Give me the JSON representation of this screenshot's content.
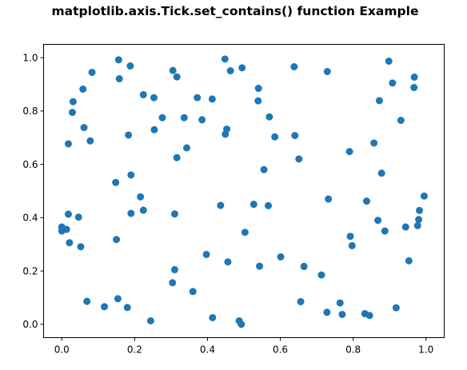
{
  "chart_data": {
    "type": "scatter",
    "title": "matplotlib.axis.Tick.set_contains() function Example",
    "xlabel": "",
    "ylabel": "",
    "xlim": [
      -0.05,
      1.05
    ],
    "ylim": [
      -0.05,
      1.05
    ],
    "xticks": [
      0.0,
      0.2,
      0.4,
      0.6,
      0.8,
      1.0
    ],
    "xtick_labels": [
      "0.0",
      "0.2",
      "0.4",
      "0.6",
      "0.8",
      "1.0"
    ],
    "yticks": [
      0.0,
      0.2,
      0.4,
      0.6,
      0.8,
      1.0
    ],
    "ytick_labels": [
      "0.0",
      "0.2",
      "0.4",
      "0.6",
      "0.8",
      "1.0"
    ],
    "grid": false,
    "marker_color": "#1f77b4",
    "points": [
      [
        0.0,
        0.365
      ],
      [
        0.0,
        0.35
      ],
      [
        0.013,
        0.356
      ],
      [
        0.018,
        0.413
      ],
      [
        0.021,
        0.306
      ],
      [
        0.018,
        0.677
      ],
      [
        0.029,
        0.795
      ],
      [
        0.031,
        0.835
      ],
      [
        0.046,
        0.402
      ],
      [
        0.052,
        0.291
      ],
      [
        0.061,
        0.738
      ],
      [
        0.058,
        0.882
      ],
      [
        0.069,
        0.086
      ],
      [
        0.078,
        0.688
      ],
      [
        0.083,
        0.945
      ],
      [
        0.117,
        0.066
      ],
      [
        0.148,
        0.532
      ],
      [
        0.15,
        0.318
      ],
      [
        0.154,
        0.096
      ],
      [
        0.156,
        0.992
      ],
      [
        0.158,
        0.921
      ],
      [
        0.18,
        0.063
      ],
      [
        0.183,
        0.71
      ],
      [
        0.188,
        0.969
      ],
      [
        0.19,
        0.56
      ],
      [
        0.19,
        0.416
      ],
      [
        0.216,
        0.478
      ],
      [
        0.224,
        0.428
      ],
      [
        0.224,
        0.861
      ],
      [
        0.244,
        0.013
      ],
      [
        0.253,
        0.85
      ],
      [
        0.254,
        0.73
      ],
      [
        0.276,
        0.775
      ],
      [
        0.305,
        0.952
      ],
      [
        0.304,
        0.156
      ],
      [
        0.31,
        0.205
      ],
      [
        0.31,
        0.414
      ],
      [
        0.316,
        0.625
      ],
      [
        0.316,
        0.928
      ],
      [
        0.336,
        0.775
      ],
      [
        0.343,
        0.662
      ],
      [
        0.36,
        0.123
      ],
      [
        0.372,
        0.85
      ],
      [
        0.385,
        0.767
      ],
      [
        0.397,
        0.262
      ],
      [
        0.413,
        0.845
      ],
      [
        0.414,
        0.025
      ],
      [
        0.436,
        0.446
      ],
      [
        0.448,
        0.995
      ],
      [
        0.449,
        0.713
      ],
      [
        0.453,
        0.732
      ],
      [
        0.456,
        0.234
      ],
      [
        0.463,
        0.951
      ],
      [
        0.487,
        0.013
      ],
      [
        0.493,
        0.0
      ],
      [
        0.495,
        0.962
      ],
      [
        0.503,
        0.345
      ],
      [
        0.527,
        0.45
      ],
      [
        0.54,
        0.885
      ],
      [
        0.539,
        0.838
      ],
      [
        0.543,
        0.218
      ],
      [
        0.555,
        0.58
      ],
      [
        0.567,
        0.445
      ],
      [
        0.57,
        0.778
      ],
      [
        0.585,
        0.703
      ],
      [
        0.601,
        0.253
      ],
      [
        0.638,
        0.966
      ],
      [
        0.64,
        0.708
      ],
      [
        0.651,
        0.62
      ],
      [
        0.656,
        0.085
      ],
      [
        0.665,
        0.217
      ],
      [
        0.713,
        0.185
      ],
      [
        0.728,
        0.045
      ],
      [
        0.729,
        0.948
      ],
      [
        0.732,
        0.47
      ],
      [
        0.764,
        0.08
      ],
      [
        0.77,
        0.037
      ],
      [
        0.79,
        0.648
      ],
      [
        0.792,
        0.33
      ],
      [
        0.797,
        0.295
      ],
      [
        0.832,
        0.04
      ],
      [
        0.837,
        0.462
      ],
      [
        0.845,
        0.033
      ],
      [
        0.857,
        0.68
      ],
      [
        0.868,
        0.39
      ],
      [
        0.872,
        0.839
      ],
      [
        0.878,
        0.567
      ],
      [
        0.887,
        0.35
      ],
      [
        0.898,
        0.987
      ],
      [
        0.908,
        0.905
      ],
      [
        0.918,
        0.062
      ],
      [
        0.931,
        0.765
      ],
      [
        0.944,
        0.365
      ],
      [
        0.953,
        0.238
      ],
      [
        0.967,
        0.888
      ],
      [
        0.968,
        0.927
      ],
      [
        0.977,
        0.37
      ],
      [
        0.98,
        0.393
      ],
      [
        0.982,
        0.427
      ],
      [
        0.995,
        0.481
      ]
    ]
  }
}
